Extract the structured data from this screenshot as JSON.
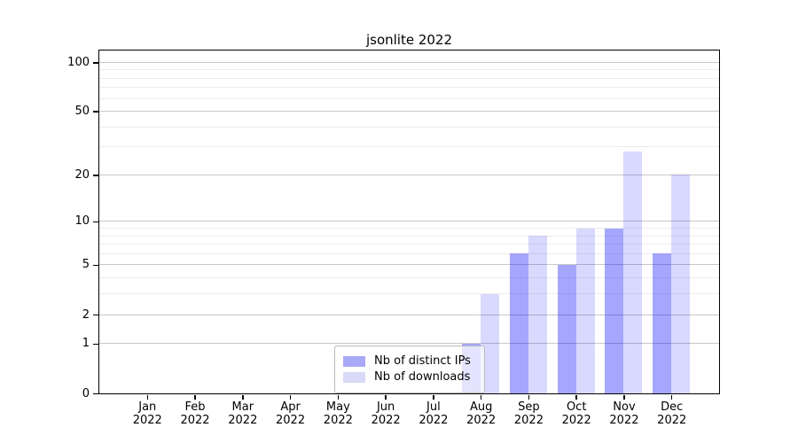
{
  "chart_data": {
    "type": "bar",
    "title": "jsonlite 2022",
    "x": {
      "months": [
        "Jan",
        "Feb",
        "Mar",
        "Apr",
        "May",
        "Jun",
        "Jul",
        "Aug",
        "Sep",
        "Oct",
        "Nov",
        "Dec"
      ],
      "year": "2022"
    },
    "series": [
      {
        "name": "Nb of distinct IPs",
        "color": "rgba(0,0,255,0.35)",
        "swatch": "#a9a9f8",
        "values": [
          0,
          0,
          0,
          0,
          0,
          0,
          0,
          1,
          6,
          5,
          9,
          6
        ]
      },
      {
        "name": "Nb of downloads",
        "color": "rgba(0,0,255,0.15)",
        "swatch": "#d9d9f8",
        "values": [
          0,
          0,
          0,
          0,
          0,
          0,
          0,
          3,
          8,
          9,
          28,
          20
        ]
      }
    ],
    "y_axis": {
      "scale": "log1p",
      "major_ticks": [
        0,
        1,
        2,
        5,
        10,
        20,
        50,
        100
      ],
      "minor_ticks": [
        3,
        4,
        6,
        7,
        8,
        9,
        30,
        40,
        60,
        70,
        80,
        90
      ],
      "top_value": 118
    },
    "legend": {
      "position": "lower-center"
    },
    "colors": {
      "grid_major": "#c8c8c8",
      "grid_minor": "#ececec",
      "frame": "#000000",
      "text": "#000000"
    }
  }
}
